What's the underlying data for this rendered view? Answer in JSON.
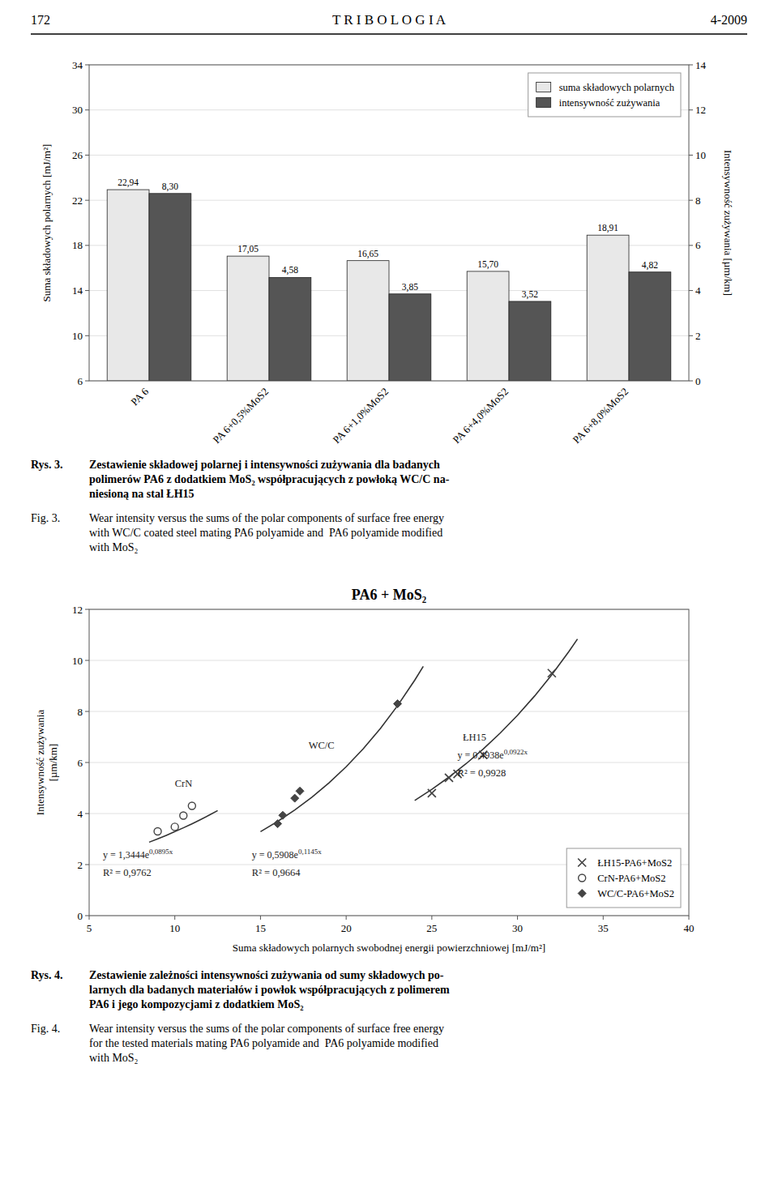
{
  "header": {
    "left": "172",
    "center": "T R I B O L O G I A",
    "right": "4-2009"
  },
  "chart_data": [
    {
      "type": "bar",
      "categories": [
        "PA 6",
        "PA 6+0,5%MoS2",
        "PA 6+1,0%MoS2",
        "PA 6+4,0%MoS2",
        "PA 6+8,0%MoS2"
      ],
      "series": [
        {
          "name": "suma składowych polarnych",
          "color": "#e8e8e8",
          "values": [
            22.94,
            17.05,
            16.65,
            15.7,
            18.91
          ],
          "value_labels": [
            "22,94",
            "17,05",
            "16,65",
            "15,70",
            "18,91"
          ]
        },
        {
          "name": "intensywność zużywania",
          "color": "#555555",
          "axis": "y2",
          "values": [
            8.3,
            4.58,
            3.85,
            3.52,
            4.82
          ],
          "value_labels": [
            "8,30",
            "4,58",
            "3,85",
            "3,52",
            "4,82"
          ]
        }
      ],
      "ylim": [
        6,
        34
      ],
      "yticks": [
        6,
        10,
        14,
        18,
        22,
        26,
        30,
        34
      ],
      "y2lim": [
        0,
        14
      ],
      "y2ticks": [
        0,
        2,
        4,
        6,
        8,
        10,
        12,
        14
      ],
      "y_label": "Suma składowych polarnych [mJ/m²]",
      "y2_label": "Intensywność zużywania [µm/km]",
      "grid": true,
      "legend": "upper right",
      "data_labels": true
    },
    {
      "type": "scatter",
      "title": "PA6 + MoS₂",
      "x_label": "Suma składowych polarnych swobodnej energii powierzchniowej [mJ/m²]",
      "y_label": "Intensywność zużywania\n[µm/km]",
      "xlim": [
        5,
        40
      ],
      "ylim": [
        0,
        12
      ],
      "xticks": [
        5,
        10,
        15,
        20,
        25,
        30,
        35,
        40
      ],
      "yticks": [
        0,
        2,
        4,
        6,
        8,
        10,
        12
      ],
      "grid": true,
      "legend": "lower right",
      "series": [
        {
          "name": "ŁH15-PA6+MoS2",
          "type": "scatter",
          "marker": "x",
          "color": "#444444",
          "x": [
            25.0,
            26.0,
            26.5,
            28.0,
            32.0
          ],
          "values": [
            4.8,
            5.4,
            5.55,
            6.3,
            9.5
          ]
        },
        {
          "name": "CrN-PA6+MoS2",
          "type": "scatter",
          "marker": "circle",
          "color": "#444444",
          "x": [
            9.0,
            10.0,
            10.5,
            11.0
          ],
          "values": [
            3.3,
            3.48,
            3.92,
            4.3
          ]
        },
        {
          "name": "WC/C-PA6+MoS2",
          "type": "scatter",
          "marker": "diamond",
          "color": "#444444",
          "x": [
            16.0,
            16.3,
            17.0,
            17.3,
            23.0
          ],
          "values": [
            3.6,
            3.93,
            4.6,
            4.88,
            8.3
          ]
        },
        {
          "type": "line",
          "line_style": "solid",
          "color": "#333333",
          "x": [
            8.5,
            9.0,
            9.5,
            10.0,
            10.5,
            11.0,
            11.5,
            12.0,
            12.5
          ],
          "values": [
            2.8769,
            3.0085,
            3.1462,
            3.2902,
            3.4408,
            3.5983,
            3.7629,
            3.9351,
            4.1152
          ]
        },
        {
          "type": "line",
          "line_style": "solid",
          "color": "#333333",
          "x": [
            15.0,
            16.0,
            17.0,
            18.0,
            19.0,
            20.0,
            21.0,
            22.0,
            23.0,
            24.0,
            24.5
          ],
          "values": [
            3.2911,
            3.6904,
            4.138,
            4.64,
            5.2029,
            5.8341,
            6.5419,
            7.3355,
            8.2254,
            9.2232,
            9.7666
          ]
        },
        {
          "type": "line",
          "line_style": "solid",
          "color": "#333333",
          "x": [
            24.0,
            25.0,
            26.0,
            27.0,
            28.0,
            29.0,
            30.0,
            31.0,
            32.0,
            33.0,
            33.5
          ],
          "values": [
            4.514,
            4.9499,
            5.428,
            5.9523,
            6.5272,
            7.1576,
            7.8489,
            8.607,
            9.4383,
            10.3499,
            10.8382
          ]
        }
      ],
      "annotations": [
        {
          "text": "CrN",
          "x": 10.0,
          "y": 5.05
        },
        {
          "text": "WC/C",
          "x": 17.8,
          "y": 6.55
        },
        {
          "text": "ŁH15",
          "x": 26.8,
          "y": 6.85
        },
        {
          "text": "y = 1,3444e",
          "superscript": "0,0895x",
          "x": 5.8,
          "y": 2.25
        },
        {
          "text": "R² = 0,9762",
          "x": 5.8,
          "y": 1.55
        },
        {
          "text": "y = 0,5908e",
          "superscript": "0,1145x",
          "x": 14.5,
          "y": 2.25
        },
        {
          "text": "R² = 0,9664",
          "x": 14.5,
          "y": 1.55
        },
        {
          "text": "y = 0,4938e",
          "superscript": "0,0922x",
          "x": 26.5,
          "y": 6.15
        },
        {
          "text": "R² = 0,9928",
          "x": 26.5,
          "y": 5.45
        }
      ]
    }
  ],
  "captions": [
    {
      "polish": {
        "label": "Rys. 3.",
        "lines": [
          "Zestawienie składowej polarnej i intensywności zużywania dla badanych",
          "polimerów PA6 z dodatkiem MoS₂ współpracujących z powłoką WC/C na-",
          "niesioną na stal ŁH15"
        ]
      },
      "english": {
        "label": "Fig. 3.",
        "lines": [
          "Wear intensity versus the sums of the polar components of surface free energy",
          "with WC/C coated steel mating PA6 polyamide and  PA6 polyamide modified",
          "with MoS₂"
        ]
      }
    },
    {
      "polish": {
        "label": "Rys. 4.",
        "lines": [
          "Zestawienie zależności intensywności zużywania od sumy składowych po-",
          "larnych dla badanych materiałów i powłok współpracujących z polimerem",
          "PA6 i jego kompozycjami z dodatkiem MoS₂"
        ]
      },
      "english": {
        "label": "Fig. 4.",
        "lines": [
          "Wear intensity versus the sums of the polar components of surface free energy",
          "for the tested materials mating PA6 polyamide and  PA6 polyamide modified",
          "with MoS₂"
        ]
      }
    }
  ]
}
